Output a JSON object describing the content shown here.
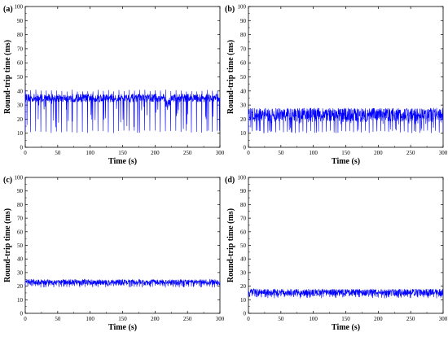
{
  "chart_data": [
    {
      "type": "line",
      "panel_label": "(a)",
      "xlabel": "Time (s)",
      "ylabel": "Round-trip time (ms)",
      "xlim": [
        0,
        300
      ],
      "ylim": [
        0,
        100
      ],
      "x_ticks": [
        0,
        50,
        100,
        150,
        200,
        250,
        300
      ],
      "y_ticks": [
        0,
        10,
        20,
        30,
        40,
        50,
        60,
        70,
        80,
        90,
        100
      ],
      "series": [
        {
          "color": "#0000ff",
          "baseline_ms": 35,
          "band_ms": [
            32,
            38
          ],
          "spike_high_ms": 41,
          "spike_low_ms": 10,
          "spike_period_s": 8,
          "dip_interval_s": [
            215,
            225
          ],
          "dip_ms": 31
        }
      ]
    },
    {
      "type": "line",
      "panel_label": "(b)",
      "xlabel": "Time (s)",
      "ylabel": "Round-trip time (ms)",
      "xlim": [
        0,
        300
      ],
      "ylim": [
        0,
        100
      ],
      "x_ticks": [
        0,
        50,
        100,
        150,
        200,
        250,
        300
      ],
      "y_ticks": [
        0,
        10,
        20,
        30,
        40,
        50,
        60,
        70,
        80,
        90,
        100
      ],
      "series": [
        {
          "color": "#0000ff",
          "baseline_ms": 24,
          "band_ms": [
            18,
            28
          ],
          "spike_high_ms": 28,
          "spike_low_ms": 10,
          "spike_period_s": 6
        }
      ]
    },
    {
      "type": "line",
      "panel_label": "(c)",
      "xlabel": "Time (s)",
      "ylabel": "Round-trip time (ms)",
      "xlim": [
        0,
        300
      ],
      "ylim": [
        0,
        100
      ],
      "x_ticks": [
        0,
        50,
        100,
        150,
        200,
        250,
        300
      ],
      "y_ticks": [
        0,
        10,
        20,
        30,
        40,
        50,
        60,
        70,
        80,
        90,
        100
      ],
      "series": [
        {
          "color": "#0000ff",
          "baseline_ms": 23,
          "band_ms": [
            21,
            25
          ],
          "spike_high_ms": 25,
          "spike_low_ms": 19,
          "spike_period_s": 4
        }
      ]
    },
    {
      "type": "line",
      "panel_label": "(d)",
      "xlabel": "Time (s)",
      "ylabel": "Round-trip time (ms)",
      "xlim": [
        0,
        300
      ],
      "ylim": [
        0,
        100
      ],
      "x_ticks": [
        0,
        50,
        100,
        150,
        200,
        250,
        300
      ],
      "y_ticks": [
        0,
        10,
        20,
        30,
        40,
        50,
        60,
        70,
        80,
        90,
        100
      ],
      "series": [
        {
          "color": "#0000ff",
          "baseline_ms": 16,
          "band_ms": [
            13,
            18
          ],
          "spike_high_ms": 18,
          "spike_low_ms": 11,
          "spike_period_s": 5
        }
      ]
    }
  ]
}
